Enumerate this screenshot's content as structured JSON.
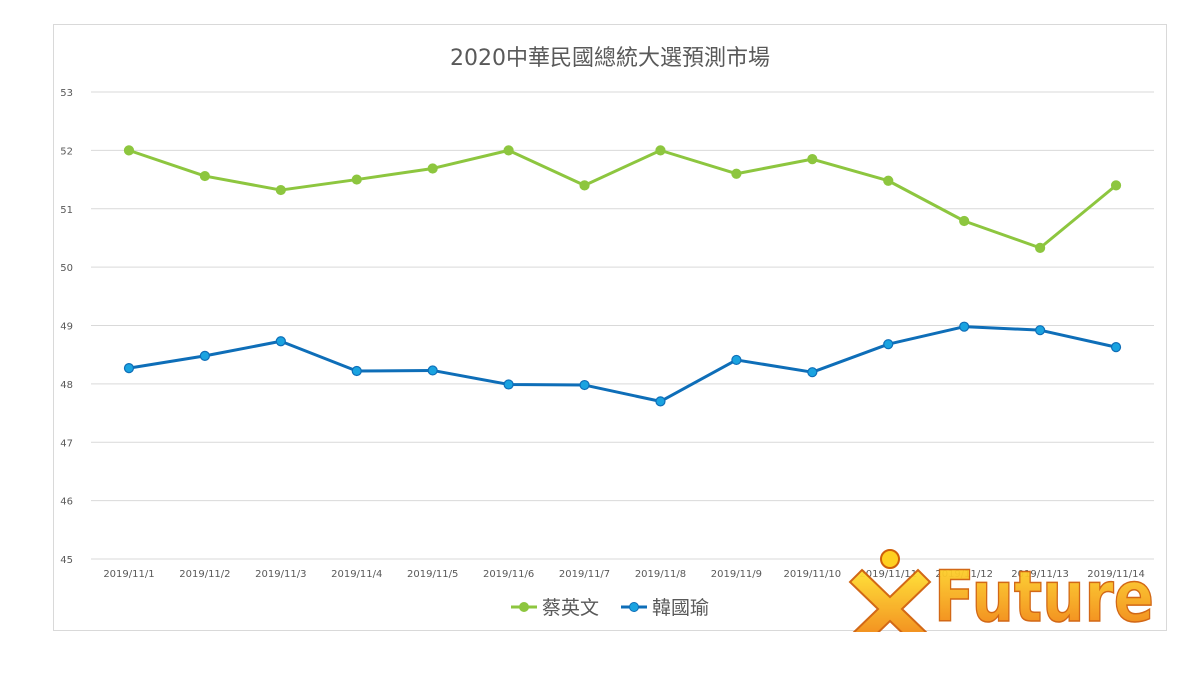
{
  "chart_data": {
    "type": "line",
    "title": "2020中華民國總統大選預測市場",
    "xlabel": "",
    "ylabel": "",
    "categories": [
      "2019/11/1",
      "2019/11/2",
      "2019/11/3",
      "2019/11/4",
      "2019/11/5",
      "2019/11/6",
      "2019/11/7",
      "2019/11/8",
      "2019/11/9",
      "2019/11/10",
      "2019/11/11",
      "2019/11/12",
      "2019/11/13",
      "2019/11/14"
    ],
    "ylim": [
      45,
      53
    ],
    "yticks": [
      "45",
      "46",
      "47",
      "48",
      "49",
      "50",
      "51",
      "52",
      "53"
    ],
    "grid": true,
    "legend_position": "bottom",
    "series": [
      {
        "name": "蔡英文",
        "color": "#8dc63f",
        "values": [
          52.0,
          51.56,
          51.32,
          51.5,
          51.69,
          52.0,
          51.4,
          52.0,
          51.6,
          51.85,
          51.48,
          50.79,
          50.33,
          51.4
        ]
      },
      {
        "name": "韓國瑜",
        "color": "#0e6eb8",
        "marker_color": "#1aa3e0",
        "values": [
          48.27,
          48.48,
          48.73,
          48.22,
          48.23,
          47.99,
          47.98,
          47.7,
          48.41,
          48.2,
          48.68,
          48.98,
          48.92,
          48.63
        ]
      }
    ]
  },
  "logo": {
    "text": "Future",
    "icon": "x-star-icon"
  }
}
